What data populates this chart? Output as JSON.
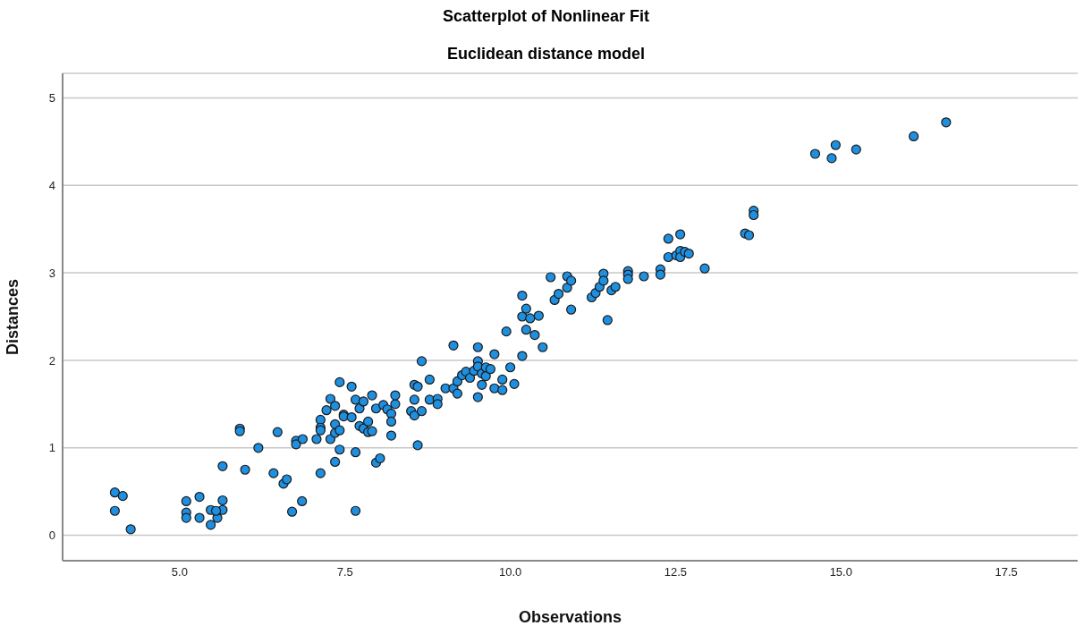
{
  "chart_data": {
    "type": "scatter",
    "title": "Scatterplot of Nonlinear Fit",
    "subtitle": "Euclidean distance model",
    "xlabel": "Observations",
    "ylabel": "Distances",
    "xlim": [
      3.23,
      18.58
    ],
    "xticks": [
      {
        "value": 5,
        "label": "5.0"
      },
      {
        "value": 7.5,
        "label": "7.5"
      },
      {
        "value": 10,
        "label": "10.0"
      },
      {
        "value": 12.5,
        "label": "12.5"
      },
      {
        "value": 15,
        "label": "15.0"
      },
      {
        "value": 17.5,
        "label": "17.5"
      }
    ],
    "ylim": [
      -0.29,
      5.28
    ],
    "yticks": [
      0,
      1,
      2,
      3,
      4,
      5
    ],
    "grid": "y",
    "marker": "circle",
    "legend": false,
    "series": [
      {
        "color": "#1f8fe0",
        "x": [
          4.02,
          4.14,
          4.02,
          4.26,
          5.1,
          5.1,
          5.1,
          5.3,
          5.3,
          5.47,
          5.57,
          5.47,
          5.65,
          5.65,
          5.55,
          5.65,
          5.91,
          5.91,
          5.99,
          6.19,
          6.42,
          6.48,
          6.57,
          6.62,
          6.7,
          6.76,
          6.76,
          6.85,
          6.86,
          7.07,
          7.13,
          7.13,
          7.13,
          7.13,
          7.22,
          7.28,
          7.28,
          7.35,
          7.35,
          7.35,
          7.35,
          7.42,
          7.42,
          7.42,
          7.48,
          7.48,
          7.6,
          7.6,
          7.66,
          7.66,
          7.66,
          7.72,
          7.72,
          7.78,
          7.78,
          7.85,
          7.85,
          7.91,
          7.91,
          7.97,
          7.97,
          8.03,
          8.08,
          8.14,
          8.2,
          8.2,
          8.2,
          8.26,
          8.26,
          8.5,
          8.55,
          8.55,
          8.55,
          8.6,
          8.6,
          8.66,
          8.66,
          8.78,
          8.78,
          8.9,
          8.9,
          9.02,
          9.14,
          9.14,
          9.2,
          9.2,
          9.27,
          9.33,
          9.39,
          9.45,
          9.51,
          9.51,
          9.51,
          9.51,
          9.57,
          9.57,
          9.63,
          9.63,
          9.7,
          9.76,
          9.76,
          9.88,
          9.88,
          9.94,
          10.0,
          10.06,
          10.18,
          10.18,
          10.18,
          10.24,
          10.24,
          10.3,
          10.37,
          10.43,
          10.49,
          10.61,
          10.67,
          10.73,
          10.86,
          10.86,
          10.92,
          10.92,
          11.23,
          11.29,
          11.35,
          11.41,
          11.41,
          11.47,
          11.53,
          11.59,
          11.78,
          11.78,
          11.78,
          12.02,
          12.27,
          12.27,
          12.39,
          12.39,
          12.51,
          12.57,
          12.57,
          12.57,
          12.64,
          12.7,
          12.94,
          13.55,
          13.61,
          13.68,
          13.68,
          14.61,
          14.86,
          14.92,
          15.23,
          16.1,
          16.59
        ],
        "values": [
          0.49,
          0.45,
          0.28,
          0.07,
          0.39,
          0.26,
          0.2,
          0.44,
          0.2,
          0.29,
          0.2,
          0.12,
          0.4,
          0.29,
          0.28,
          0.79,
          1.22,
          1.19,
          0.75,
          1.0,
          0.71,
          1.18,
          0.59,
          0.64,
          0.27,
          1.08,
          1.04,
          0.39,
          1.1,
          1.1,
          1.32,
          1.23,
          1.2,
          0.71,
          1.43,
          1.56,
          1.1,
          1.17,
          1.48,
          1.27,
          0.84,
          1.75,
          1.2,
          0.98,
          1.38,
          1.36,
          1.35,
          1.7,
          1.55,
          0.95,
          0.28,
          1.45,
          1.25,
          1.53,
          1.22,
          1.3,
          1.18,
          1.6,
          1.19,
          1.45,
          0.83,
          0.88,
          1.49,
          1.44,
          1.39,
          1.3,
          1.14,
          1.5,
          1.6,
          1.42,
          1.72,
          1.55,
          1.37,
          1.7,
          1.03,
          1.99,
          1.42,
          1.55,
          1.78,
          1.56,
          1.5,
          1.68,
          2.17,
          1.68,
          1.62,
          1.76,
          1.83,
          1.87,
          1.8,
          1.88,
          2.15,
          1.58,
          1.99,
          1.93,
          1.72,
          1.85,
          1.92,
          1.82,
          1.9,
          2.07,
          1.68,
          1.66,
          1.78,
          2.33,
          1.92,
          1.73,
          2.74,
          2.5,
          2.05,
          2.35,
          2.59,
          2.48,
          2.29,
          2.51,
          2.15,
          2.95,
          2.69,
          2.76,
          2.96,
          2.83,
          2.91,
          2.58,
          2.72,
          2.77,
          2.84,
          2.99,
          2.91,
          2.46,
          2.8,
          2.84,
          3.02,
          2.98,
          2.93,
          2.96,
          3.04,
          2.98,
          3.39,
          3.18,
          3.2,
          3.44,
          3.25,
          3.18,
          3.24,
          3.22,
          3.05,
          3.45,
          3.43,
          3.71,
          3.66,
          4.36,
          4.31,
          4.46,
          4.41,
          4.56,
          4.72
        ]
      }
    ]
  }
}
